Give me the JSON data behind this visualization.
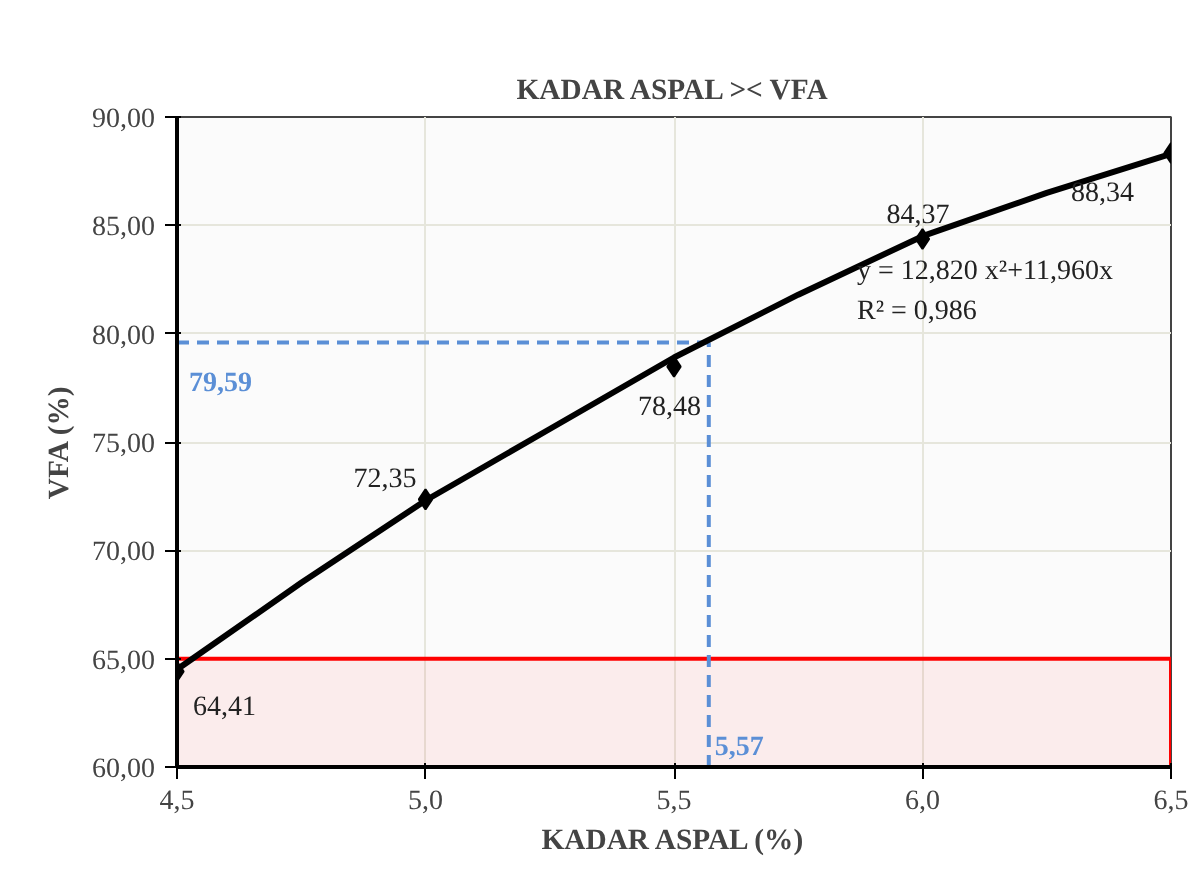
{
  "chart_data": {
    "type": "scatter",
    "title": "KADAR ASPAL >< VFA",
    "xlabel": "KADAR ASPAL (%)",
    "ylabel": "VFA (%)",
    "xlim": [
      4.5,
      6.5
    ],
    "ylim": [
      60,
      90
    ],
    "xticks": [
      {
        "value": 4.5,
        "label": "4,5"
      },
      {
        "value": 5.0,
        "label": "5,0"
      },
      {
        "value": 5.5,
        "label": "5,5"
      },
      {
        "value": 6.0,
        "label": "6,0"
      },
      {
        "value": 6.5,
        "label": "6,5"
      }
    ],
    "yticks": [
      {
        "value": 60,
        "label": "60,00"
      },
      {
        "value": 65,
        "label": "65,00"
      },
      {
        "value": 70,
        "label": "70,00"
      },
      {
        "value": 75,
        "label": "75,00"
      },
      {
        "value": 80,
        "label": "80,00"
      },
      {
        "value": 85,
        "label": "85,00"
      },
      {
        "value": 90,
        "label": "90,00"
      }
    ],
    "grid": true,
    "series": [
      {
        "marker": "diamond",
        "color": "#000000",
        "x": [
          4.5,
          5.0,
          5.5,
          6.0,
          6.5
        ],
        "values": [
          64.41,
          72.35,
          78.48,
          84.37,
          88.34
        ],
        "value_labels": [
          "64,41",
          "72,35",
          "78,48",
          "84,37",
          "88,34"
        ]
      },
      {
        "type": "line",
        "color": "#000000",
        "x": [
          4.5,
          4.75,
          5.0,
          5.25,
          5.5,
          5.75,
          6.0,
          6.25,
          6.5
        ],
        "values": [
          64.5,
          68.5,
          72.3,
          75.6,
          78.9,
          81.8,
          84.5,
          86.5,
          88.3
        ]
      }
    ],
    "ref_lines": [
      {
        "axis": "y",
        "value": 79.59,
        "label": "79,59",
        "color": "#5b8fd6",
        "line_style": "dashed"
      },
      {
        "axis": "x",
        "value": 5.57,
        "label": "5,57",
        "color": "#5b8fd6",
        "line_style": "dashed"
      }
    ],
    "bands": [
      {
        "axis": "y",
        "from": 60,
        "to": 65,
        "color": "#ff0000"
      }
    ],
    "annotations": [
      "y = 12,820 x²+11,960x",
      "R² = 0,986"
    ]
  }
}
